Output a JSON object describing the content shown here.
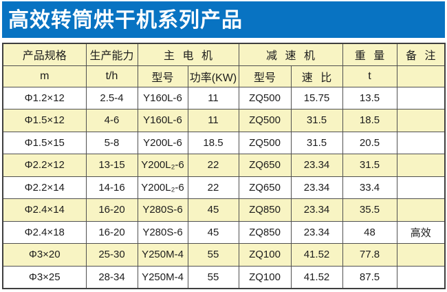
{
  "banner": {
    "title": "高效转筒烘干机系列产品",
    "bg_color": "#0873c2",
    "text_color": "#ffffff"
  },
  "table": {
    "colors": {
      "header_bg": "#f8f4c3",
      "row_bg": "#ffffff",
      "row_alt_bg": "#f8f4c3",
      "border": "#4f4f4f"
    },
    "header_row1": [
      "产品规格",
      "生产能力",
      "主 电 机",
      "减 速 机",
      "重 量",
      "备 注"
    ],
    "header_row2": [
      "m",
      "t/h",
      "型号",
      "功率(KW)",
      "型号",
      "速 比",
      "t",
      ""
    ],
    "rows": [
      [
        "Φ1.2×12",
        "2.5-4",
        "Y160L-6",
        "11",
        "ZQ500",
        "15.75",
        "13.5",
        ""
      ],
      [
        "Φ1.5×12",
        "4-6",
        "Y160L-6",
        "11",
        "ZQ500",
        "31.5",
        "18.5",
        ""
      ],
      [
        "Φ1.5×15",
        "5-8",
        "Y200L-6",
        "18.5",
        "ZQ500",
        "31.5",
        "20.5",
        ""
      ],
      [
        "Φ2.2×12",
        "13-15",
        "Y200L₂-6",
        "22",
        "ZQ650",
        "23.34",
        "31.5",
        ""
      ],
      [
        "Φ2.2×14",
        "14-16",
        "Y200L₂-6",
        "22",
        "ZQ650",
        "23.34",
        "33.4",
        ""
      ],
      [
        "Φ2.4×14",
        "16-20",
        "Y280S-6",
        "45",
        "ZQ850",
        "23.34",
        "35.5",
        ""
      ],
      [
        "Φ2.4×18",
        "16-20",
        "Y280S-6",
        "45",
        "ZQ850",
        "23.34",
        "48",
        "高效"
      ],
      [
        "Φ3×20",
        "25-30",
        "Y250M-4",
        "55",
        "ZQ100",
        "41.52",
        "77.8",
        ""
      ],
      [
        "Φ3×25",
        "28-34",
        "Y250M-4",
        "55",
        "ZQ100",
        "41.52",
        "87.5",
        ""
      ]
    ]
  }
}
